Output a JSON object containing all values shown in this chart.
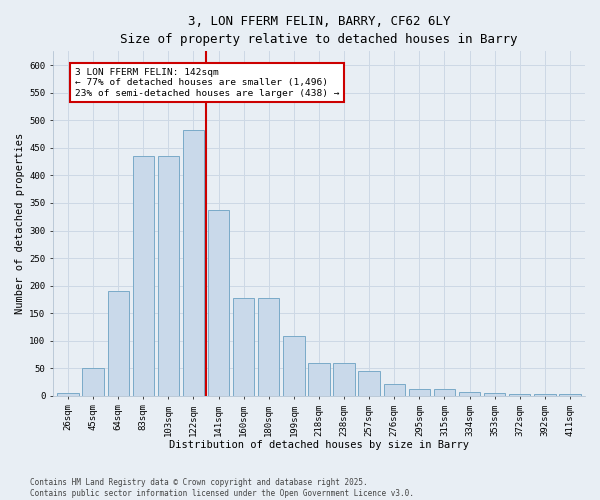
{
  "title": "3, LON FFERM FELIN, BARRY, CF62 6LY",
  "subtitle": "Size of property relative to detached houses in Barry",
  "xlabel": "Distribution of detached houses by size in Barry",
  "ylabel": "Number of detached properties",
  "categories": [
    "26sqm",
    "45sqm",
    "64sqm",
    "83sqm",
    "103sqm",
    "122sqm",
    "141sqm",
    "160sqm",
    "180sqm",
    "199sqm",
    "218sqm",
    "238sqm",
    "257sqm",
    "276sqm",
    "295sqm",
    "315sqm",
    "334sqm",
    "353sqm",
    "372sqm",
    "392sqm",
    "411sqm"
  ],
  "values": [
    5,
    50,
    190,
    435,
    435,
    483,
    338,
    178,
    178,
    108,
    60,
    60,
    45,
    22,
    12,
    12,
    7,
    5,
    4,
    4,
    3
  ],
  "bar_color": "#c9d9ea",
  "bar_edge_color": "#7aaac8",
  "grid_color": "#cdd8e5",
  "vline_index": 6,
  "vline_color": "#cc0000",
  "annotation_text": "3 LON FFERM FELIN: 142sqm\n← 77% of detached houses are smaller (1,496)\n23% of semi-detached houses are larger (438) →",
  "annotation_box_color": "#ffffff",
  "annotation_edge_color": "#cc0000",
  "ylim": [
    0,
    625
  ],
  "yticks": [
    0,
    50,
    100,
    150,
    200,
    250,
    300,
    350,
    400,
    450,
    500,
    550,
    600
  ],
  "footer": "Contains HM Land Registry data © Crown copyright and database right 2025.\nContains public sector information licensed under the Open Government Licence v3.0.",
  "bg_color": "#e8eef4",
  "plot_bg_color": "#e8eef4",
  "title_fontsize": 9,
  "axis_label_fontsize": 7.5,
  "tick_fontsize": 6.5,
  "annotation_fontsize": 6.8
}
